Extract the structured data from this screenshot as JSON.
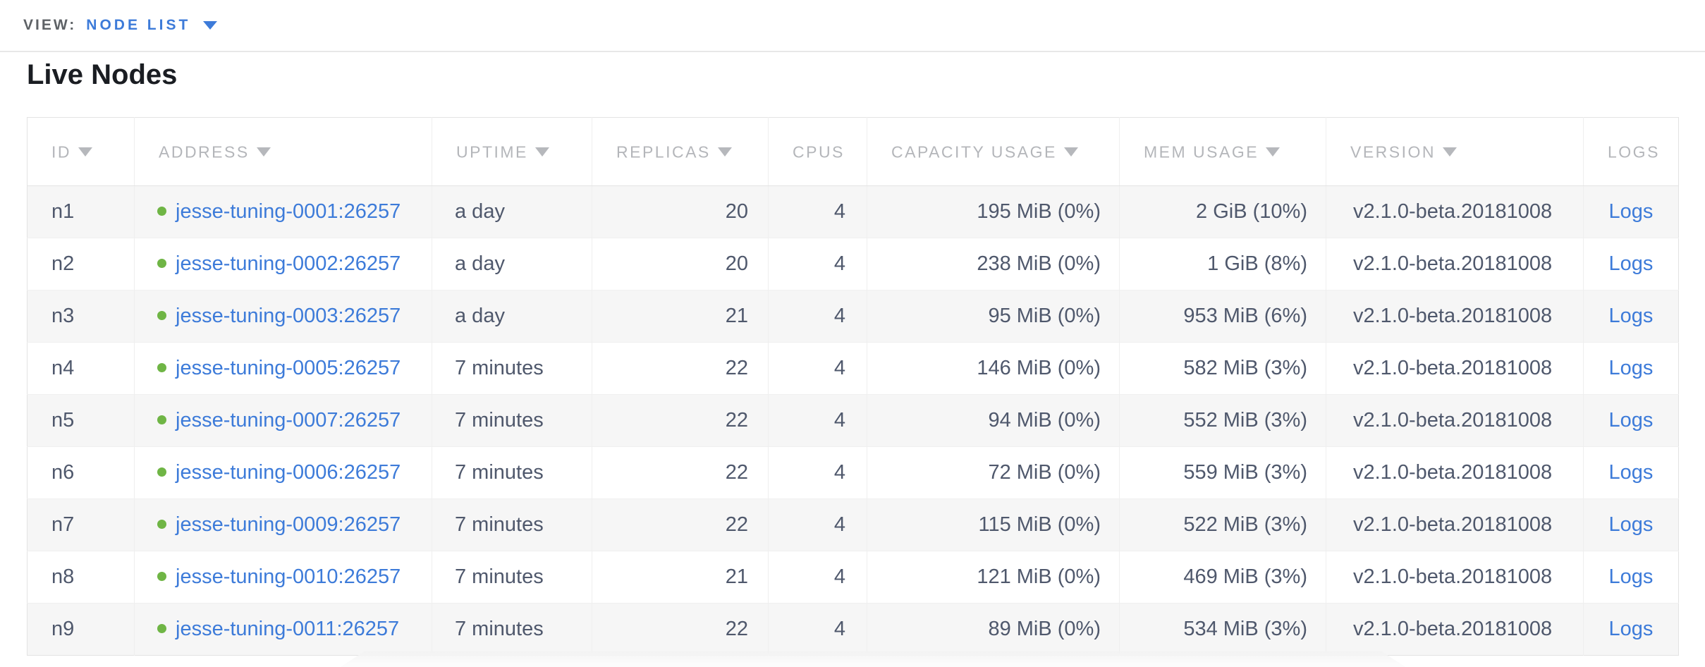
{
  "view_bar": {
    "label": "VIEW:",
    "value": "NODE LIST"
  },
  "page": {
    "title": "Live Nodes"
  },
  "colors": {
    "accent_blue": "#3d7bd9",
    "healthy_green": "#6fb545",
    "header_gray": "#b4b6ba",
    "cell_text": "#4f586c",
    "row_stripe": "#f6f6f6"
  },
  "table": {
    "columns": [
      {
        "key": "id",
        "label": "ID",
        "sortable": true,
        "align": "left"
      },
      {
        "key": "address",
        "label": "ADDRESS",
        "sortable": true,
        "align": "left"
      },
      {
        "key": "uptime",
        "label": "UPTIME",
        "sortable": true,
        "align": "left"
      },
      {
        "key": "replicas",
        "label": "REPLICAS",
        "sortable": true,
        "align": "right"
      },
      {
        "key": "cpus",
        "label": "CPUS",
        "sortable": false,
        "align": "right"
      },
      {
        "key": "capacity",
        "label": "CAPACITY USAGE",
        "sortable": true,
        "align": "right"
      },
      {
        "key": "mem",
        "label": "MEM USAGE",
        "sortable": true,
        "align": "right"
      },
      {
        "key": "version",
        "label": "VERSION",
        "sortable": true,
        "align": "left"
      },
      {
        "key": "logs",
        "label": "LOGS",
        "sortable": false,
        "align": "center"
      }
    ],
    "status_icon": "healthy-dot",
    "rows": [
      {
        "id": "n1",
        "status": "healthy",
        "address": "jesse-tuning-0001:26257",
        "uptime": "a day",
        "replicas": "20",
        "cpus": "4",
        "capacity": "195 MiB (0%)",
        "mem": "2 GiB (10%)",
        "version": "v2.1.0-beta.20181008",
        "logs": "Logs"
      },
      {
        "id": "n2",
        "status": "healthy",
        "address": "jesse-tuning-0002:26257",
        "uptime": "a day",
        "replicas": "20",
        "cpus": "4",
        "capacity": "238 MiB (0%)",
        "mem": "1 GiB (8%)",
        "version": "v2.1.0-beta.20181008",
        "logs": "Logs"
      },
      {
        "id": "n3",
        "status": "healthy",
        "address": "jesse-tuning-0003:26257",
        "uptime": "a day",
        "replicas": "21",
        "cpus": "4",
        "capacity": "95 MiB (0%)",
        "mem": "953 MiB (6%)",
        "version": "v2.1.0-beta.20181008",
        "logs": "Logs"
      },
      {
        "id": "n4",
        "status": "healthy",
        "address": "jesse-tuning-0005:26257",
        "uptime": "7 minutes",
        "replicas": "22",
        "cpus": "4",
        "capacity": "146 MiB (0%)",
        "mem": "582 MiB (3%)",
        "version": "v2.1.0-beta.20181008",
        "logs": "Logs"
      },
      {
        "id": "n5",
        "status": "healthy",
        "address": "jesse-tuning-0007:26257",
        "uptime": "7 minutes",
        "replicas": "22",
        "cpus": "4",
        "capacity": "94 MiB (0%)",
        "mem": "552 MiB (3%)",
        "version": "v2.1.0-beta.20181008",
        "logs": "Logs"
      },
      {
        "id": "n6",
        "status": "healthy",
        "address": "jesse-tuning-0006:26257",
        "uptime": "7 minutes",
        "replicas": "22",
        "cpus": "4",
        "capacity": "72 MiB (0%)",
        "mem": "559 MiB (3%)",
        "version": "v2.1.0-beta.20181008",
        "logs": "Logs"
      },
      {
        "id": "n7",
        "status": "healthy",
        "address": "jesse-tuning-0009:26257",
        "uptime": "7 minutes",
        "replicas": "22",
        "cpus": "4",
        "capacity": "115 MiB (0%)",
        "mem": "522 MiB (3%)",
        "version": "v2.1.0-beta.20181008",
        "logs": "Logs"
      },
      {
        "id": "n8",
        "status": "healthy",
        "address": "jesse-tuning-0010:26257",
        "uptime": "7 minutes",
        "replicas": "21",
        "cpus": "4",
        "capacity": "121 MiB (0%)",
        "mem": "469 MiB (3%)",
        "version": "v2.1.0-beta.20181008",
        "logs": "Logs"
      },
      {
        "id": "n9",
        "status": "healthy",
        "address": "jesse-tuning-0011:26257",
        "uptime": "7 minutes",
        "replicas": "22",
        "cpus": "4",
        "capacity": "89 MiB (0%)",
        "mem": "534 MiB (3%)",
        "version": "v2.1.0-beta.20181008",
        "logs": "Logs"
      }
    ]
  }
}
